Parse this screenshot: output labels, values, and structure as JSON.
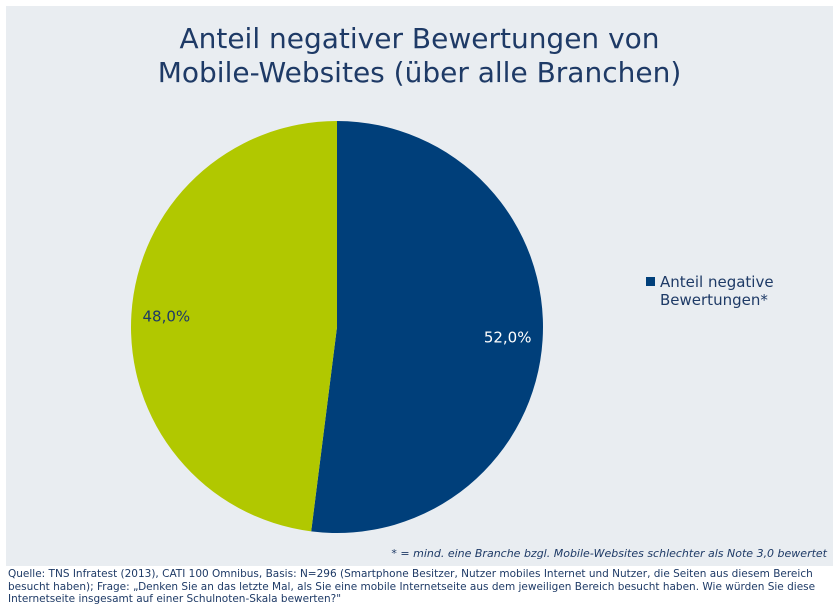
{
  "chart_data": {
    "type": "pie",
    "title_line1": "Anteil negativer Bewertungen von",
    "title_line2": "Mobile-Websites (über alle Branchen)",
    "slices": [
      {
        "label": "Anteil negative Bewertungen*",
        "value": 52.0,
        "display": "52,0%",
        "color": "#003f7a"
      },
      {
        "label": "",
        "value": 48.0,
        "display": "48,0%",
        "color": "#b1c800"
      }
    ],
    "legend": {
      "label": "Anteil negative Bewertungen*",
      "position": "right",
      "color": "#003f7a"
    },
    "footnote": "* = mind. eine Branche bzgl. Mobile-Websites schlechter als Note 3,0 bewertet"
  },
  "source": {
    "text": "Quelle: TNS Infratest (2013), CATI 100 Omnibus, Basis: N=296 (Smartphone Besitzer, Nutzer mobiles Internet und Nutzer, die Seiten aus diesem Bereich besucht haben);  Frage: „Denken Sie an das letzte Mal, als Sie eine mobile Internetseite aus dem jeweiligen Bereich besucht haben. Wie würden Sie diese Internetseite insgesamt auf einer Schulnoten-Skala bewerten?\""
  }
}
